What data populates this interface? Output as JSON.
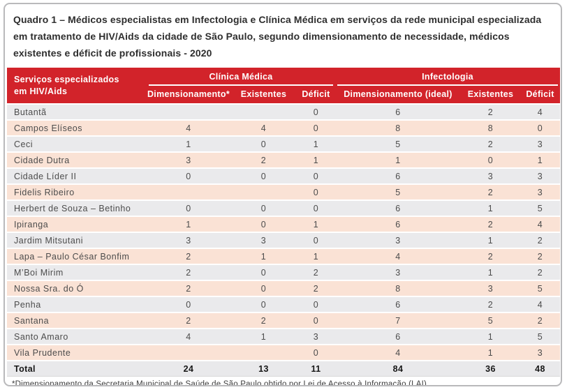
{
  "title_lines": [
    "Quadro 1 – Médicos especialistas em Infectologia e Clínica Médica em serviços da rede municipal especializada",
    "em tratamento de HIV/Aids da cidade de São Paulo, segundo dimensionamento de necessidade, médicos",
    "existentes e déficit de profissionais - 2020"
  ],
  "table": {
    "row_header": "Serviços especializados em HIV/Aids",
    "groups": [
      {
        "label": "Clínica Médica",
        "columns": [
          "Dimensionamento*",
          "Existentes",
          "Déficit"
        ]
      },
      {
        "label": "Infectologia",
        "columns": [
          "Dimensionamento (ideal)",
          "Existentes",
          "Déficit"
        ]
      }
    ],
    "rows": [
      {
        "service": "Butantã",
        "values": [
          "",
          "",
          "0",
          "6",
          "2",
          "4"
        ]
      },
      {
        "service": "Campos Elíseos",
        "values": [
          "4",
          "4",
          "0",
          "8",
          "8",
          "0"
        ]
      },
      {
        "service": "Ceci",
        "values": [
          "1",
          "0",
          "1",
          "5",
          "2",
          "3"
        ]
      },
      {
        "service": "Cidade Dutra",
        "values": [
          "3",
          "2",
          "1",
          "1",
          "0",
          "1"
        ]
      },
      {
        "service": "Cidade Líder II",
        "values": [
          "0",
          "0",
          "0",
          "6",
          "3",
          "3"
        ]
      },
      {
        "service": "Fidelis Ribeiro",
        "values": [
          "",
          "",
          "0",
          "5",
          "2",
          "3"
        ]
      },
      {
        "service": "Herbert de Souza – Betinho",
        "values": [
          "0",
          "0",
          "0",
          "6",
          "1",
          "5"
        ]
      },
      {
        "service": "Ipiranga",
        "values": [
          "1",
          "0",
          "1",
          "6",
          "2",
          "4"
        ]
      },
      {
        "service": "Jardim Mitsutani",
        "values": [
          "3",
          "3",
          "0",
          "3",
          "1",
          "2"
        ]
      },
      {
        "service": "Lapa – Paulo César Bonfim",
        "values": [
          "2",
          "1",
          "1",
          "4",
          "2",
          "2"
        ]
      },
      {
        "service": "M’Boi Mirim",
        "values": [
          "2",
          "0",
          "2",
          "3",
          "1",
          "2"
        ]
      },
      {
        "service": "Nossa Sra. do Ó",
        "values": [
          "2",
          "0",
          "2",
          "8",
          "3",
          "5"
        ]
      },
      {
        "service": "Penha",
        "values": [
          "0",
          "0",
          "0",
          "6",
          "2",
          "4"
        ]
      },
      {
        "service": "Santana",
        "values": [
          "2",
          "2",
          "0",
          "7",
          "5",
          "2"
        ]
      },
      {
        "service": "Santo Amaro",
        "values": [
          "4",
          "1",
          "3",
          "6",
          "1",
          "5"
        ]
      },
      {
        "service": "Vila Prudente",
        "values": [
          "",
          "",
          "0",
          "4",
          "1",
          "3"
        ]
      }
    ],
    "total_row": {
      "service": "Total",
      "values": [
        "24",
        "13",
        "11",
        "84",
        "36",
        "48"
      ]
    }
  },
  "footnote": "*Dimensionamento da Secretaria Municipal de Saúde de São Paulo obtido por Lei de Acesso à Informação (LAI)",
  "colors": {
    "header_bg": "#d2232a",
    "row_gray": "#eaeaec",
    "row_peach": "#fae2d5",
    "total_bg": "#e9e9eb",
    "card_border": "#b9b9bb"
  }
}
